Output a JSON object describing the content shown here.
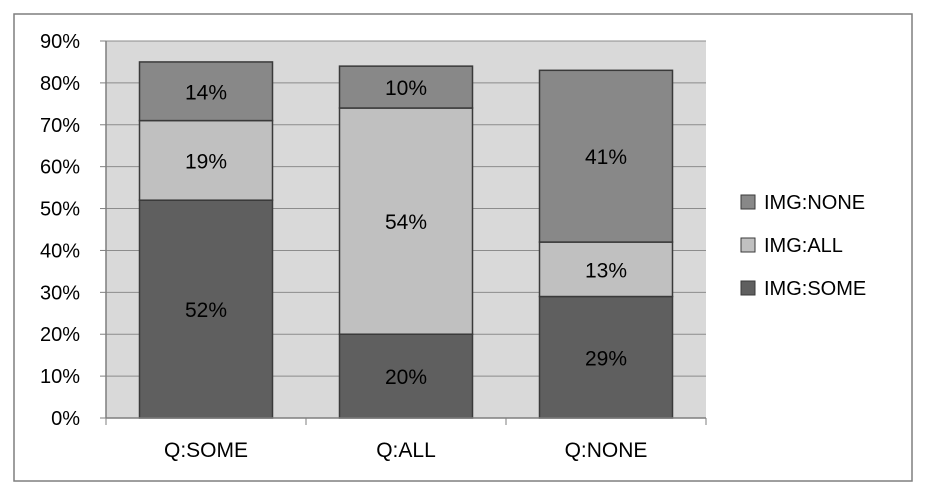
{
  "chart_data": {
    "type": "bar",
    "stacked": true,
    "categories": [
      "Q:SOME",
      "Q:ALL",
      "Q:NONE"
    ],
    "series": [
      {
        "name": "IMG:SOME",
        "values": [
          52,
          20,
          29
        ],
        "labels": [
          "52%",
          "20%",
          "29%"
        ],
        "color": "#5f5f5f"
      },
      {
        "name": "IMG:ALL",
        "values": [
          19,
          54,
          13
        ],
        "labels": [
          "19%",
          "54%",
          "13%"
        ],
        "color": "#c0c0c0"
      },
      {
        "name": "IMG:NONE",
        "values": [
          14,
          10,
          41
        ],
        "labels": [
          "14%",
          "10%",
          "41%"
        ],
        "color": "#888888"
      }
    ],
    "yticks": [
      "0%",
      "10%",
      "20%",
      "30%",
      "40%",
      "50%",
      "60%",
      "70%",
      "80%",
      "90%"
    ],
    "ylim": [
      0,
      90
    ],
    "ytick_step": 10,
    "legend_order": [
      "IMG:NONE",
      "IMG:ALL",
      "IMG:SOME"
    ],
    "legend_position": "right",
    "title": "",
    "xlabel": "",
    "ylabel": "",
    "grid": true,
    "plot_background": "#d9d9d9"
  }
}
